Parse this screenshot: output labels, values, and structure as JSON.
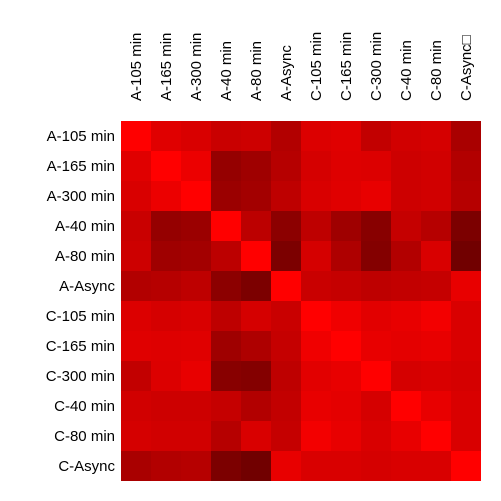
{
  "chart_data": {
    "type": "heatmap",
    "row_labels": [
      "A-105 min",
      "A-165 min",
      "A-300 min",
      "A-40 min",
      "A-80 min",
      "A-Async",
      "C-105 min",
      "C-165 min",
      "C-300 min",
      "C-40 min",
      "C-80 min",
      "C-Async"
    ],
    "col_labels": [
      "A-105 min",
      "A-165 min",
      "A-300 min",
      "A-40 min",
      "A-80 min",
      "A-Async",
      "C-105 min",
      "C-165 min",
      "C-300 min",
      "C-40 min",
      "C-80 min",
      "C-Async□"
    ],
    "value_range": [
      0,
      1
    ],
    "color_low": "#3f0000",
    "color_high": "#ff0000",
    "values": [
      [
        1.0,
        0.84,
        0.8,
        0.72,
        0.74,
        0.6,
        0.82,
        0.84,
        0.68,
        0.76,
        0.78,
        0.55
      ],
      [
        0.84,
        1.0,
        0.9,
        0.45,
        0.5,
        0.62,
        0.78,
        0.83,
        0.82,
        0.74,
        0.76,
        0.6
      ],
      [
        0.8,
        0.9,
        1.0,
        0.48,
        0.52,
        0.66,
        0.8,
        0.84,
        0.88,
        0.74,
        0.76,
        0.62
      ],
      [
        0.72,
        0.45,
        0.48,
        1.0,
        0.65,
        0.4,
        0.66,
        0.5,
        0.38,
        0.7,
        0.62,
        0.32
      ],
      [
        0.74,
        0.5,
        0.52,
        0.65,
        1.0,
        0.32,
        0.78,
        0.58,
        0.36,
        0.6,
        0.8,
        0.26
      ],
      [
        0.6,
        0.62,
        0.66,
        0.4,
        0.32,
        1.0,
        0.72,
        0.7,
        0.66,
        0.68,
        0.7,
        0.88
      ],
      [
        0.82,
        0.78,
        0.8,
        0.66,
        0.78,
        0.72,
        1.0,
        0.92,
        0.85,
        0.88,
        0.94,
        0.8
      ],
      [
        0.84,
        0.83,
        0.84,
        0.5,
        0.58,
        0.7,
        0.92,
        1.0,
        0.88,
        0.86,
        0.88,
        0.8
      ],
      [
        0.68,
        0.82,
        0.88,
        0.38,
        0.36,
        0.66,
        0.85,
        0.88,
        1.0,
        0.78,
        0.8,
        0.78
      ],
      [
        0.76,
        0.74,
        0.74,
        0.7,
        0.6,
        0.68,
        0.88,
        0.86,
        0.78,
        1.0,
        0.88,
        0.8
      ],
      [
        0.78,
        0.76,
        0.76,
        0.62,
        0.8,
        0.7,
        0.94,
        0.88,
        0.8,
        0.88,
        1.0,
        0.8
      ],
      [
        0.55,
        0.6,
        0.62,
        0.32,
        0.26,
        0.88,
        0.8,
        0.8,
        0.78,
        0.8,
        0.8,
        1.0
      ]
    ]
  }
}
